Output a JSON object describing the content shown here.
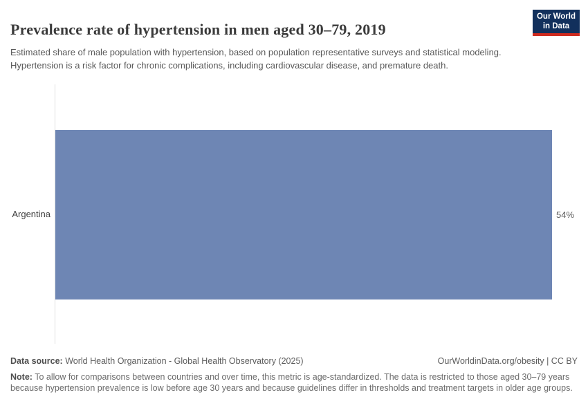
{
  "header": {
    "title": "Prevalence rate of hypertension in men aged 30–79, 2019",
    "subtitle": "Estimated share of male population with hypertension, based on population representative surveys and statistical modeling. Hypertension is a risk factor for chronic complications, including cardiovascular disease, and premature death.",
    "logo": {
      "line1": "Our World",
      "line2": "in Data"
    }
  },
  "chart_data": {
    "type": "bar",
    "orientation": "horizontal",
    "title": "Prevalence rate of hypertension in men aged 30–79, 2019",
    "categories": [
      "Argentina"
    ],
    "values": [
      54
    ],
    "value_labels": [
      "54%"
    ],
    "unit": "%",
    "xlabel": "",
    "ylabel": "",
    "xlim": [
      0,
      54
    ],
    "grid": false,
    "legend": "none",
    "bar_color": "#6e86b4",
    "axis_color": "#dedede"
  },
  "footer": {
    "data_source_label": "Data source:",
    "data_source_value": " World Health Organization - Global Health Observatory (2025)",
    "link": "OurWorldinData.org/obesity | CC BY",
    "note_label": "Note:",
    "note_value": " To allow for comparisons between countries and over time, this metric is age-standardized. The data is restricted to those aged 30–79 years because hypertension prevalence is low before age 30 years and because guidelines differ in thresholds and treatment targets in older age groups."
  },
  "colors": {
    "bar": "#6e86b4",
    "logo_background": "#12305c",
    "logo_stripe": "#cf2b1f",
    "axis": "#dedede"
  }
}
